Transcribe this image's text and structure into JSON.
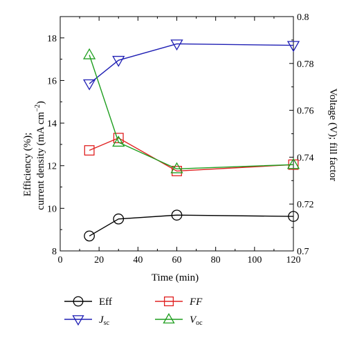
{
  "chart_data": {
    "type": "line",
    "xlabel": "Time (min)",
    "ylabel_left_line1": "Efficiency (%);",
    "ylabel_left_line2": "current density (mA cm",
    "ylabel_left_sup": "−2",
    "ylabel_left_close": ")",
    "ylabel_right": "Voltage (V); fill factor",
    "xlim": [
      0,
      120
    ],
    "xticks": [
      0,
      20,
      40,
      60,
      80,
      100,
      120
    ],
    "ylim_left": [
      8,
      19
    ],
    "yticks_left": [
      8,
      10,
      12,
      14,
      16,
      18
    ],
    "ylim_right": [
      0.7,
      0.8
    ],
    "yticks_right": [
      "0.7",
      "0.72",
      "0.74",
      "0.76",
      "0.78",
      "0.8"
    ],
    "legend_position": "bottom",
    "x": [
      15,
      30,
      60,
      120
    ],
    "series": [
      {
        "name": "Eff",
        "sub": "",
        "italic": false,
        "marker": "circle",
        "color": "#000000",
        "values": [
          8.7,
          9.5,
          9.68,
          9.62
        ]
      },
      {
        "name": "J",
        "sub": "sc",
        "italic": true,
        "marker": "triangle-down",
        "color": "#1f1fb4",
        "values": [
          15.85,
          16.95,
          17.72,
          17.65
        ]
      },
      {
        "name": "FF",
        "sub": "",
        "italic": true,
        "marker": "square",
        "color": "#e02020",
        "values": [
          12.72,
          13.3,
          11.75,
          12.05
        ]
      },
      {
        "name": "V",
        "sub": "oc",
        "italic": true,
        "marker": "triangle-up",
        "color": "#1e9e1e",
        "values": [
          17.2,
          13.1,
          11.85,
          12.05
        ]
      }
    ]
  }
}
